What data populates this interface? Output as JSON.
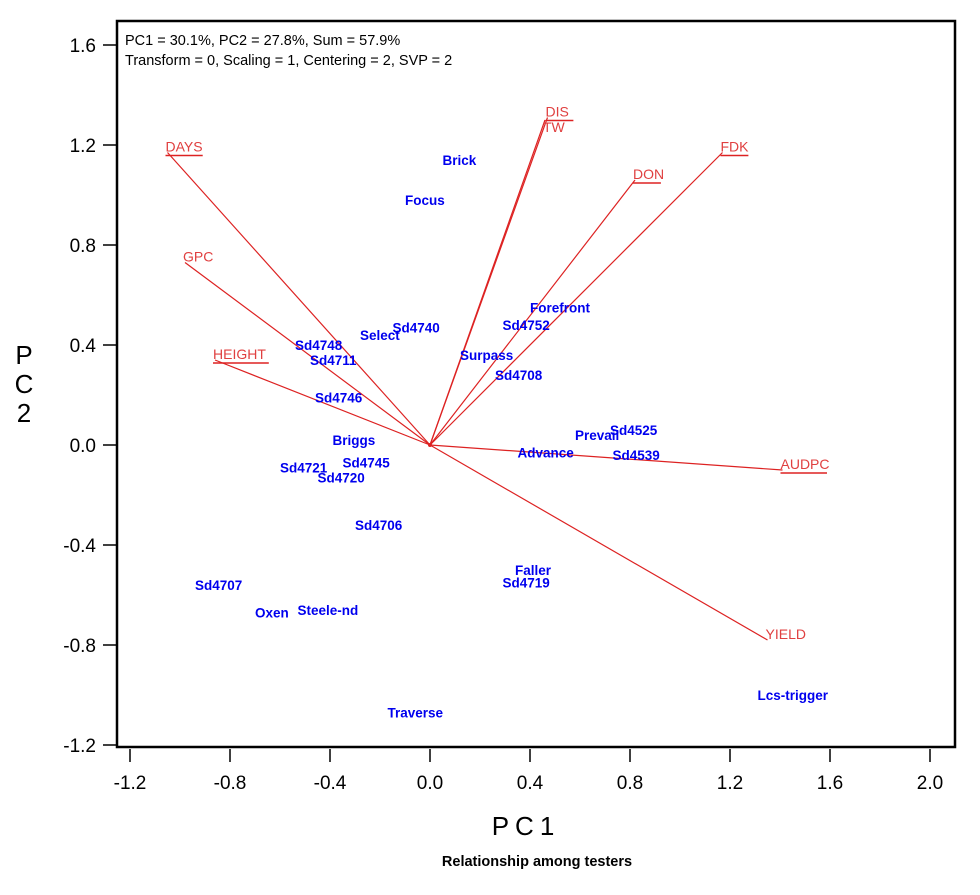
{
  "chart_data": {
    "type": "scatter",
    "subtype": "biplot",
    "info_lines": [
      "PC1 = 30.1%, PC2 = 27.8%, Sum = 57.9%",
      "Transform = 0, Scaling = 1, Centering = 2, SVP = 2"
    ],
    "xlabel": "PC1",
    "ylabel_chars": [
      "P",
      "C",
      "2"
    ],
    "caption": "Relationship among testers",
    "xlim": [
      -1.3,
      2.1
    ],
    "ylim": [
      -1.22,
      1.7
    ],
    "xticks": [
      -1.2,
      -0.8,
      -0.4,
      0.0,
      0.4,
      0.8,
      1.2,
      1.6,
      2.0
    ],
    "xtick_labels": [
      "-1.2",
      "-0.8",
      "-0.4",
      "0.0",
      "0.4",
      "0.8",
      "1.2",
      "1.6",
      "2.0"
    ],
    "yticks": [
      1.6,
      1.2,
      0.8,
      0.4,
      0.0,
      -0.4,
      -0.8,
      -1.2
    ],
    "ytick_labels": [
      "1.6",
      "1.2",
      "0.8",
      "0.4",
      "0.0",
      "-0.4",
      "-0.8",
      "-1.2"
    ],
    "grid": false,
    "colors": {
      "genotype": "#0000ee",
      "trait": "#e04040",
      "vector": "#dd2222"
    },
    "traits": [
      {
        "name": "DAYS",
        "x": -1.05,
        "y": 1.17,
        "underline": true
      },
      {
        "name": "GPC",
        "x": -0.98,
        "y": 0.73,
        "underline": false
      },
      {
        "name": "HEIGHT",
        "x": -0.86,
        "y": 0.34,
        "underline": true
      },
      {
        "name": "DIS",
        "x": 0.47,
        "y": 1.31,
        "underline": true
      },
      {
        "name": "TW",
        "x": 0.46,
        "y": 1.3,
        "underline": false
      },
      {
        "name": "DON",
        "x": 0.82,
        "y": 1.06,
        "underline": true
      },
      {
        "name": "FDK",
        "x": 1.17,
        "y": 1.17,
        "underline": true
      },
      {
        "name": "AUDPC",
        "x": 1.41,
        "y": -0.1,
        "underline": true
      },
      {
        "name": "YIELD",
        "x": 1.35,
        "y": -0.78,
        "underline": false
      }
    ],
    "genotypes": [
      {
        "name": "Brick",
        "x": 0.05,
        "y": 1.14
      },
      {
        "name": "Focus",
        "x": -0.1,
        "y": 0.98
      },
      {
        "name": "Select",
        "x": -0.28,
        "y": 0.44
      },
      {
        "name": "Sd4740",
        "x": -0.15,
        "y": 0.47
      },
      {
        "name": "Sd4748",
        "x": -0.54,
        "y": 0.4
      },
      {
        "name": "Sd4711",
        "x": -0.48,
        "y": 0.34
      },
      {
        "name": "Sd4746",
        "x": -0.46,
        "y": 0.19
      },
      {
        "name": "Forefront",
        "x": 0.4,
        "y": 0.55
      },
      {
        "name": "Sd4752",
        "x": 0.29,
        "y": 0.48
      },
      {
        "name": "Surpass",
        "x": 0.12,
        "y": 0.36
      },
      {
        "name": "Sd4708",
        "x": 0.26,
        "y": 0.28
      },
      {
        "name": "Prevail",
        "x": 0.58,
        "y": 0.04
      },
      {
        "name": "Sd4525",
        "x": 0.72,
        "y": 0.06
      },
      {
        "name": "Advance",
        "x": 0.35,
        "y": -0.03
      },
      {
        "name": "Sd4539",
        "x": 0.73,
        "y": -0.04
      },
      {
        "name": "Briggs",
        "x": -0.39,
        "y": 0.02
      },
      {
        "name": "Sd4721",
        "x": -0.6,
        "y": -0.09
      },
      {
        "name": "Sd4745",
        "x": -0.35,
        "y": -0.07
      },
      {
        "name": "Sd4720",
        "x": -0.45,
        "y": -0.13
      },
      {
        "name": "Sd4706",
        "x": -0.3,
        "y": -0.32
      },
      {
        "name": "Sd4707",
        "x": -0.94,
        "y": -0.56
      },
      {
        "name": "Oxen",
        "x": -0.7,
        "y": -0.67
      },
      {
        "name": "Steele-nd",
        "x": -0.53,
        "y": -0.66
      },
      {
        "name": "Faller",
        "x": 0.34,
        "y": -0.5
      },
      {
        "name": "Sd4719",
        "x": 0.29,
        "y": -0.55
      },
      {
        "name": "Lcs-trigger",
        "x": 1.31,
        "y": -1.0
      },
      {
        "name": "Traverse",
        "x": -0.17,
        "y": -1.07
      }
    ]
  }
}
